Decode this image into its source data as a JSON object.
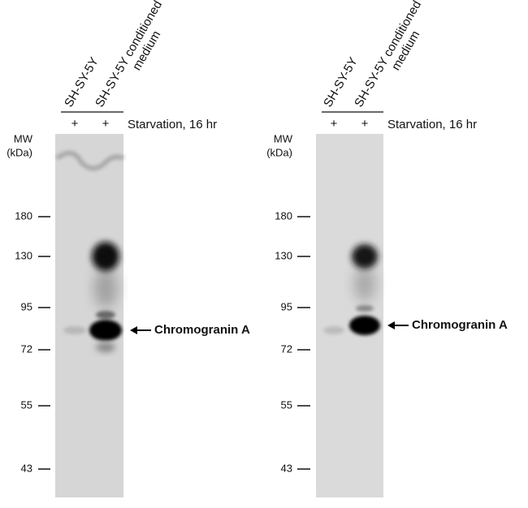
{
  "panels": [
    {
      "lanes": [
        {
          "lines": [
            "SH-SY-5Y"
          ]
        },
        {
          "lines": [
            "SH-SY-5Y conditioned",
            "medium"
          ]
        }
      ],
      "treatment": {
        "label": "Starvation, 16 hr",
        "signs": [
          "+",
          "+"
        ]
      },
      "mw": {
        "title": [
          "MW",
          "(kDa)"
        ],
        "markers": [
          "180",
          "130",
          "95",
          "72",
          "55",
          "43"
        ]
      },
      "band_label": "Chromogranin A"
    },
    {
      "lanes": [
        {
          "lines": [
            "SH-SY-5Y"
          ]
        },
        {
          "lines": [
            "SH-SY-5Y conditioned",
            "medium"
          ]
        }
      ],
      "treatment": {
        "label": "Starvation, 16 hr",
        "signs": [
          "+",
          "+"
        ]
      },
      "mw": {
        "title": [
          "MW",
          "(kDa)"
        ],
        "markers": [
          "180",
          "130",
          "95",
          "72",
          "55",
          "43"
        ]
      },
      "band_label": "Chromogranin A"
    }
  ]
}
